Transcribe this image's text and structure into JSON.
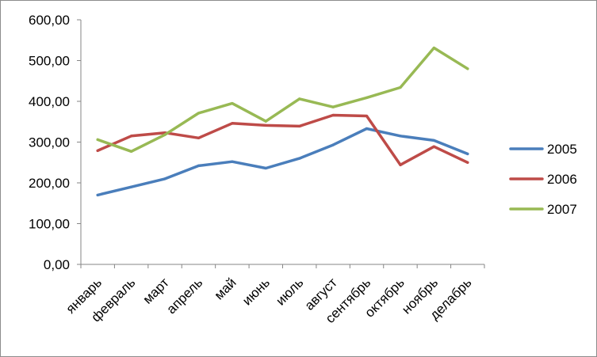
{
  "chart_data": {
    "type": "line",
    "title": "",
    "xlabel": "",
    "ylabel": "",
    "categories": [
      "январь",
      "февраль",
      "март",
      "апрель",
      "май",
      "июнь",
      "июль",
      "август",
      "сентябрь",
      "октябрь",
      "ноябрь",
      "делабрь"
    ],
    "ylim": [
      0,
      600
    ],
    "yticks": [
      "0,00",
      "100,00",
      "200,00",
      "300,00",
      "400,00",
      "500,00",
      "600,00"
    ],
    "grid": false,
    "legend_position": "right",
    "series": [
      {
        "name": "2005",
        "color": "#4a7ebb",
        "values": [
          170,
          190,
          210,
          242,
          252,
          236,
          260,
          293,
          333,
          315,
          304,
          271
        ]
      },
      {
        "name": "2006",
        "color": "#be4b48",
        "values": [
          279,
          315,
          323,
          310,
          346,
          341,
          339,
          366,
          364,
          244,
          289,
          250
        ]
      },
      {
        "name": "2007",
        "color": "#98b954",
        "values": [
          306,
          277,
          318,
          371,
          395,
          351,
          406,
          386,
          409,
          434,
          531,
          480
        ]
      }
    ]
  }
}
